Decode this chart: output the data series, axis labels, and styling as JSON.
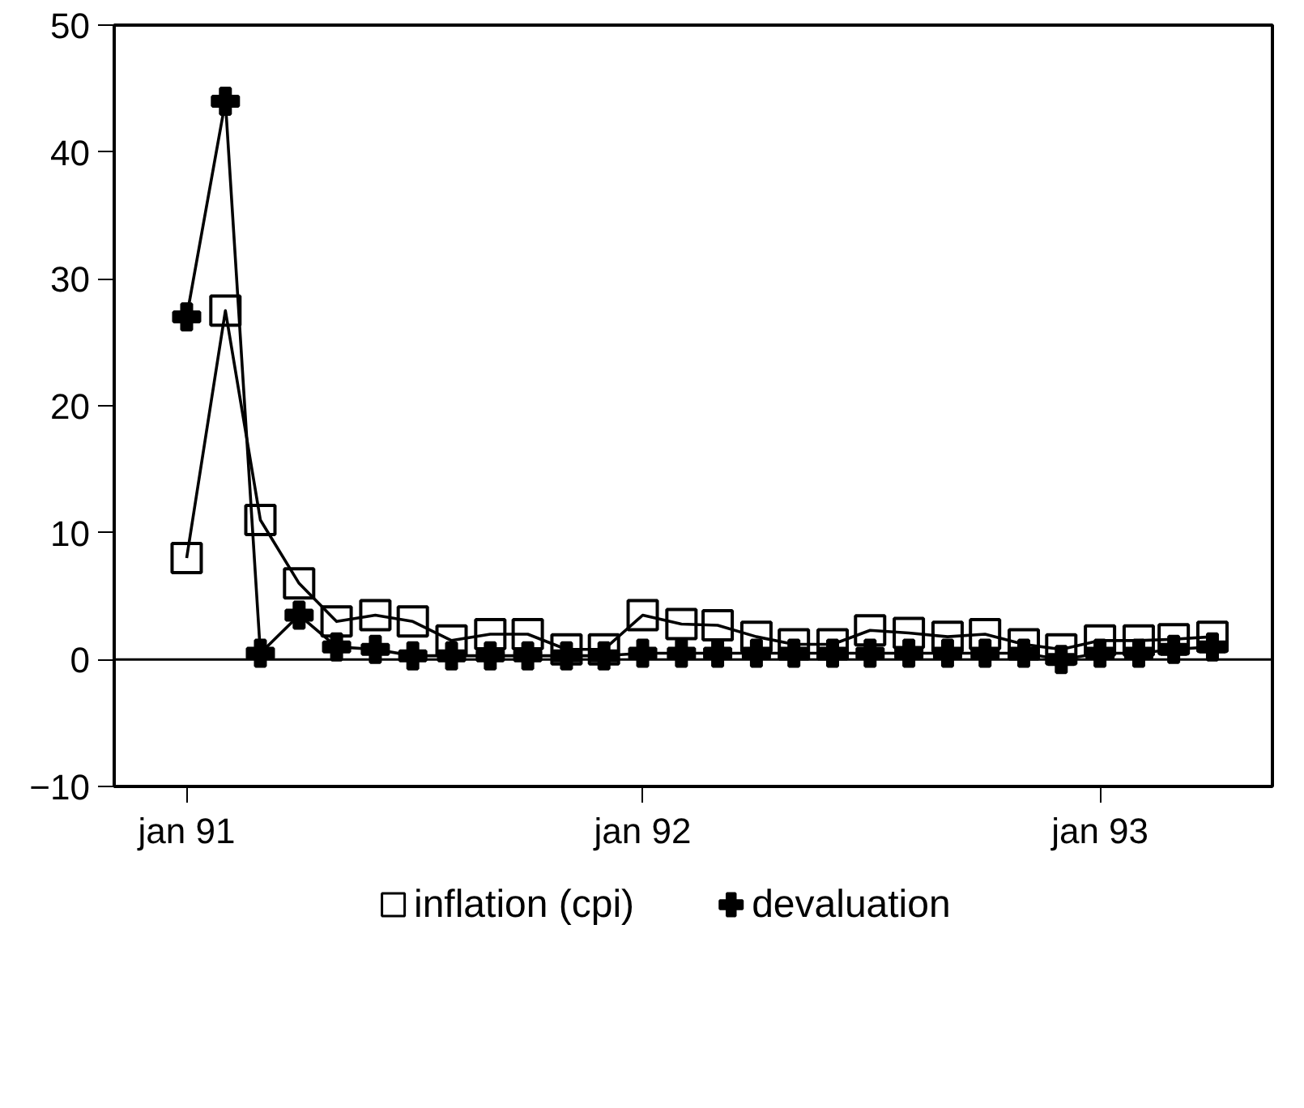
{
  "chart_data": {
    "type": "line",
    "x": [
      "1991-01",
      "1991-02",
      "1991-03",
      "1991-04",
      "1991-05",
      "1991-06",
      "1991-07",
      "1991-08",
      "1991-09",
      "1991-10",
      "1991-11",
      "1991-12",
      "1992-01",
      "1992-02",
      "1992-03",
      "1992-04",
      "1992-05",
      "1992-06",
      "1992-07",
      "1992-08",
      "1992-09",
      "1992-10",
      "1992-11",
      "1992-12",
      "1993-01",
      "1993-02",
      "1993-03",
      "1993-04"
    ],
    "series": [
      {
        "name": "inflation (cpi)",
        "color": "#000000",
        "marker": "square",
        "values": [
          8,
          27.5,
          11,
          6,
          3,
          3.5,
          3,
          1.5,
          2,
          2,
          0.8,
          0.8,
          3.5,
          2.8,
          2.7,
          1.8,
          1.2,
          1.2,
          2.3,
          2.1,
          1.8,
          2,
          1.2,
          0.8,
          1.5,
          1.5,
          1.6,
          1.8
        ]
      },
      {
        "name": "devaluation",
        "color": "#000000",
        "marker": "cross",
        "values": [
          27,
          44,
          0.5,
          3.5,
          1,
          0.8,
          0.3,
          0.3,
          0.3,
          0.3,
          0.3,
          0.3,
          0.5,
          0.5,
          0.5,
          0.5,
          0.5,
          0.5,
          0.5,
          0.5,
          0.5,
          0.5,
          0.5,
          0,
          0.5,
          0.5,
          0.8,
          1
        ]
      }
    ],
    "xlim": [
      "1990-11-04",
      "1993-05-19"
    ],
    "xticks": [
      {
        "value": "1991-01",
        "label": "jan 91"
      },
      {
        "value": "1992-01",
        "label": "jan 92"
      },
      {
        "value": "1993-01",
        "label": "jan 93"
      }
    ],
    "ylim": [
      -10,
      50
    ],
    "yticks": [
      -10,
      0,
      10,
      20,
      30,
      40,
      50
    ],
    "ref_lines": [
      {
        "axis": "y",
        "value": 0,
        "color": "#000000"
      }
    ],
    "grid": false,
    "legend": "bottom",
    "line_style": "solid"
  }
}
